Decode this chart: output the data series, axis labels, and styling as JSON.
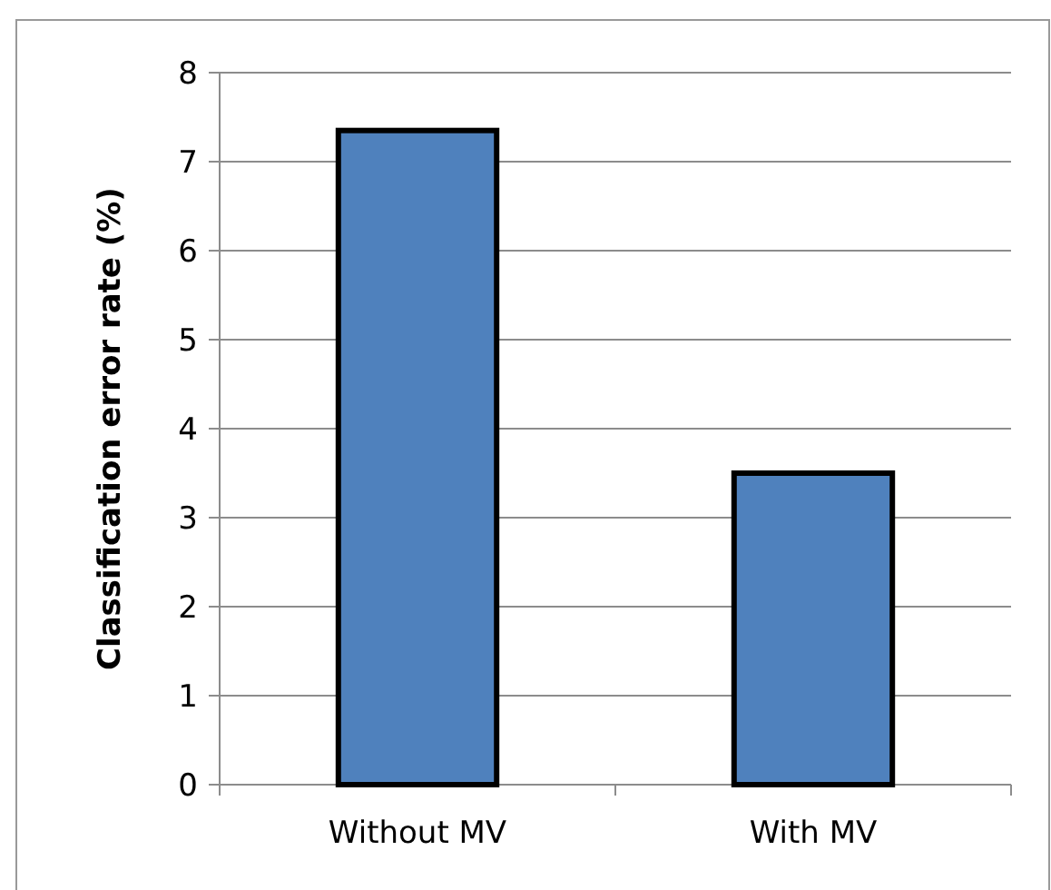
{
  "chart_data": {
    "type": "bar",
    "ylabel": "Classification error rate (%)",
    "categories": [
      "Without MV",
      "With MV"
    ],
    "values": [
      7.35,
      3.5
    ],
    "color": "#4f81bd",
    "ylim": [
      0,
      8
    ],
    "yticks": [
      0,
      1,
      2,
      3,
      4,
      5,
      6,
      7,
      8
    ],
    "grid": "y"
  }
}
